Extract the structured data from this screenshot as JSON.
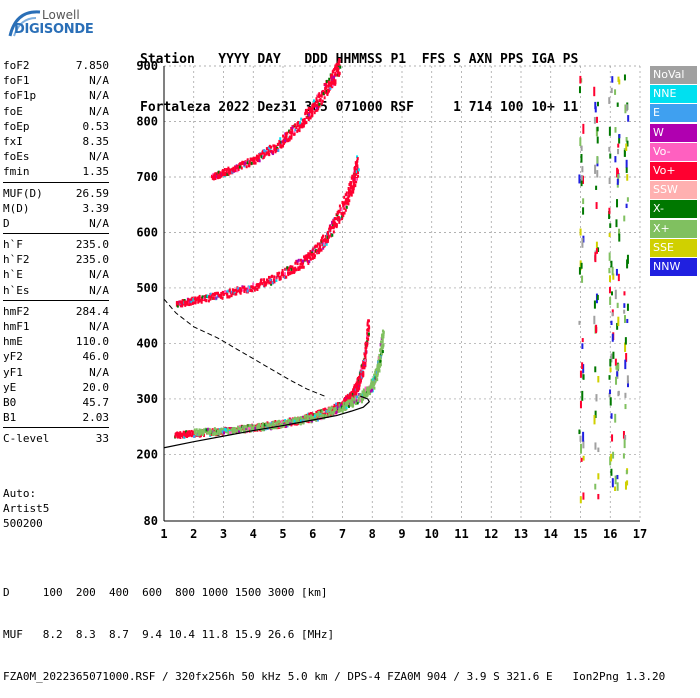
{
  "logo": {
    "brand_top": "Lowell",
    "brand_main": "DIGISONDE"
  },
  "header": {
    "line1": "Station   YYYY DAY   DDD HHMMSS P1  FFS S AXN PPS IGA PS",
    "line2": "Fortaleza 2022 Dez31 365 071000 RSF     1 714 100 10+ 11"
  },
  "params_group1": [
    {
      "name": "foF2",
      "value": "7.850"
    },
    {
      "name": "foF1",
      "value": "N/A"
    },
    {
      "name": "foF1p",
      "value": "N/A"
    },
    {
      "name": "foE",
      "value": "N/A"
    },
    {
      "name": "foEp",
      "value": "0.53"
    },
    {
      "name": "fxI",
      "value": "8.35"
    },
    {
      "name": "foEs",
      "value": "N/A"
    },
    {
      "name": "fmin",
      "value": "1.35"
    }
  ],
  "params_group2": [
    {
      "name": "MUF(D)",
      "value": "26.59"
    },
    {
      "name": "M(D)",
      "value": "3.39"
    },
    {
      "name": "D",
      "value": "N/A"
    }
  ],
  "params_group3": [
    {
      "name": "h`F",
      "value": "235.0"
    },
    {
      "name": "h`F2",
      "value": "235.0"
    },
    {
      "name": "h`E",
      "value": "N/A"
    },
    {
      "name": "h`Es",
      "value": "N/A"
    }
  ],
  "params_group4": [
    {
      "name": "hmF2",
      "value": "284.4"
    },
    {
      "name": "hmF1",
      "value": "N/A"
    },
    {
      "name": "hmE",
      "value": "110.0"
    },
    {
      "name": "yF2",
      "value": "46.0"
    },
    {
      "name": "yF1",
      "value": "N/A"
    },
    {
      "name": "yE",
      "value": "20.0"
    },
    {
      "name": "B0",
      "value": "45.7"
    },
    {
      "name": "B1",
      "value": "2.03"
    }
  ],
  "params_group5": [
    {
      "name": "C-level",
      "value": "33"
    }
  ],
  "auto": {
    "line1": "Auto:",
    "line2": "Artist5",
    "line3": "500200"
  },
  "legend": [
    {
      "label": "NoVal",
      "color": "#a0a0a0"
    },
    {
      "label": "NNE",
      "color": "#00e0f0"
    },
    {
      "label": "E",
      "color": "#3fa0f0"
    },
    {
      "label": "W",
      "color": "#b000b0"
    },
    {
      "label": "Vo-",
      "color": "#ff60c0"
    },
    {
      "label": "Vo+",
      "color": "#ff0030"
    },
    {
      "label": "SSW",
      "color": "#ffb0b0"
    },
    {
      "label": "X-",
      "color": "#007800"
    },
    {
      "label": "X+",
      "color": "#80c060"
    },
    {
      "label": "SSE",
      "color": "#d0d000"
    },
    {
      "label": "NNW",
      "color": "#2020e0"
    }
  ],
  "footer": {
    "line1": "D     100  200  400  600  800 1000 1500 3000 [km]",
    "line2": "MUF   8.2  8.3  8.7  9.4 10.4 11.8 15.9 26.6 [MHz]",
    "line3": "FZA0M_2022365071000.RSF / 320fx256h 50 kHz 5.0 km / DPS-4 FZA0M 904 / 3.9 S 321.6 E   Ion2Png 1.3.20"
  },
  "chart_data": {
    "type": "scatter",
    "xlabel": "",
    "ylabel": "",
    "xlim": [
      1,
      17
    ],
    "ylim": [
      80,
      900
    ],
    "x_ticks": [
      1,
      2,
      3,
      4,
      5,
      6,
      7,
      8,
      9,
      10,
      11,
      12,
      13,
      14,
      15,
      16,
      17
    ],
    "y_ticks": [
      80,
      200,
      300,
      400,
      500,
      600,
      700,
      800,
      900
    ],
    "grid": true,
    "traces": [
      {
        "name": "O-trace F2",
        "color": "#ff0030",
        "x": [
          1.35,
          2.0,
          3.0,
          4.0,
          5.0,
          6.0,
          6.6,
          7.0,
          7.3,
          7.5,
          7.7,
          7.85
        ],
        "y": [
          235,
          238,
          242,
          248,
          256,
          268,
          278,
          290,
          305,
          325,
          360,
          430
        ]
      },
      {
        "name": "X-trace F2",
        "color": "#80c060",
        "x": [
          2.0,
          3.0,
          4.0,
          5.0,
          6.0,
          7.0,
          7.6,
          8.0,
          8.2,
          8.35
        ],
        "y": [
          240,
          243,
          248,
          256,
          266,
          285,
          302,
          325,
          360,
          410
        ]
      },
      {
        "name": "2F O-trace",
        "color": "#ff0030",
        "x": [
          1.4,
          2.0,
          3.0,
          4.0,
          5.0,
          5.8,
          6.4,
          6.9,
          7.3,
          7.5
        ],
        "y": [
          470,
          478,
          488,
          502,
          524,
          550,
          585,
          630,
          680,
          720
        ]
      },
      {
        "name": "3F O-trace",
        "color": "#ff0030",
        "x": [
          2.6,
          3.2,
          4.0,
          4.8,
          5.5,
          6.1,
          6.6,
          6.9
        ],
        "y": [
          700,
          712,
          730,
          755,
          790,
          830,
          870,
          895
        ]
      }
    ],
    "profile": {
      "name": "N(h) profile",
      "x": [
        1.0,
        2.0,
        3.0,
        4.0,
        5.0,
        6.0,
        6.8,
        7.3,
        7.7,
        7.9,
        7.85,
        7.6
      ],
      "y": [
        212,
        223,
        233,
        243,
        252,
        262,
        270,
        278,
        285,
        295,
        300,
        305
      ]
    },
    "profile_dashed": {
      "x": [
        1.0,
        1.4,
        2.0,
        2.8,
        3.6,
        4.4,
        5.2,
        5.8,
        6.4
      ],
      "y": [
        480,
        455,
        430,
        410,
        385,
        360,
        335,
        318,
        305
      ]
    }
  }
}
